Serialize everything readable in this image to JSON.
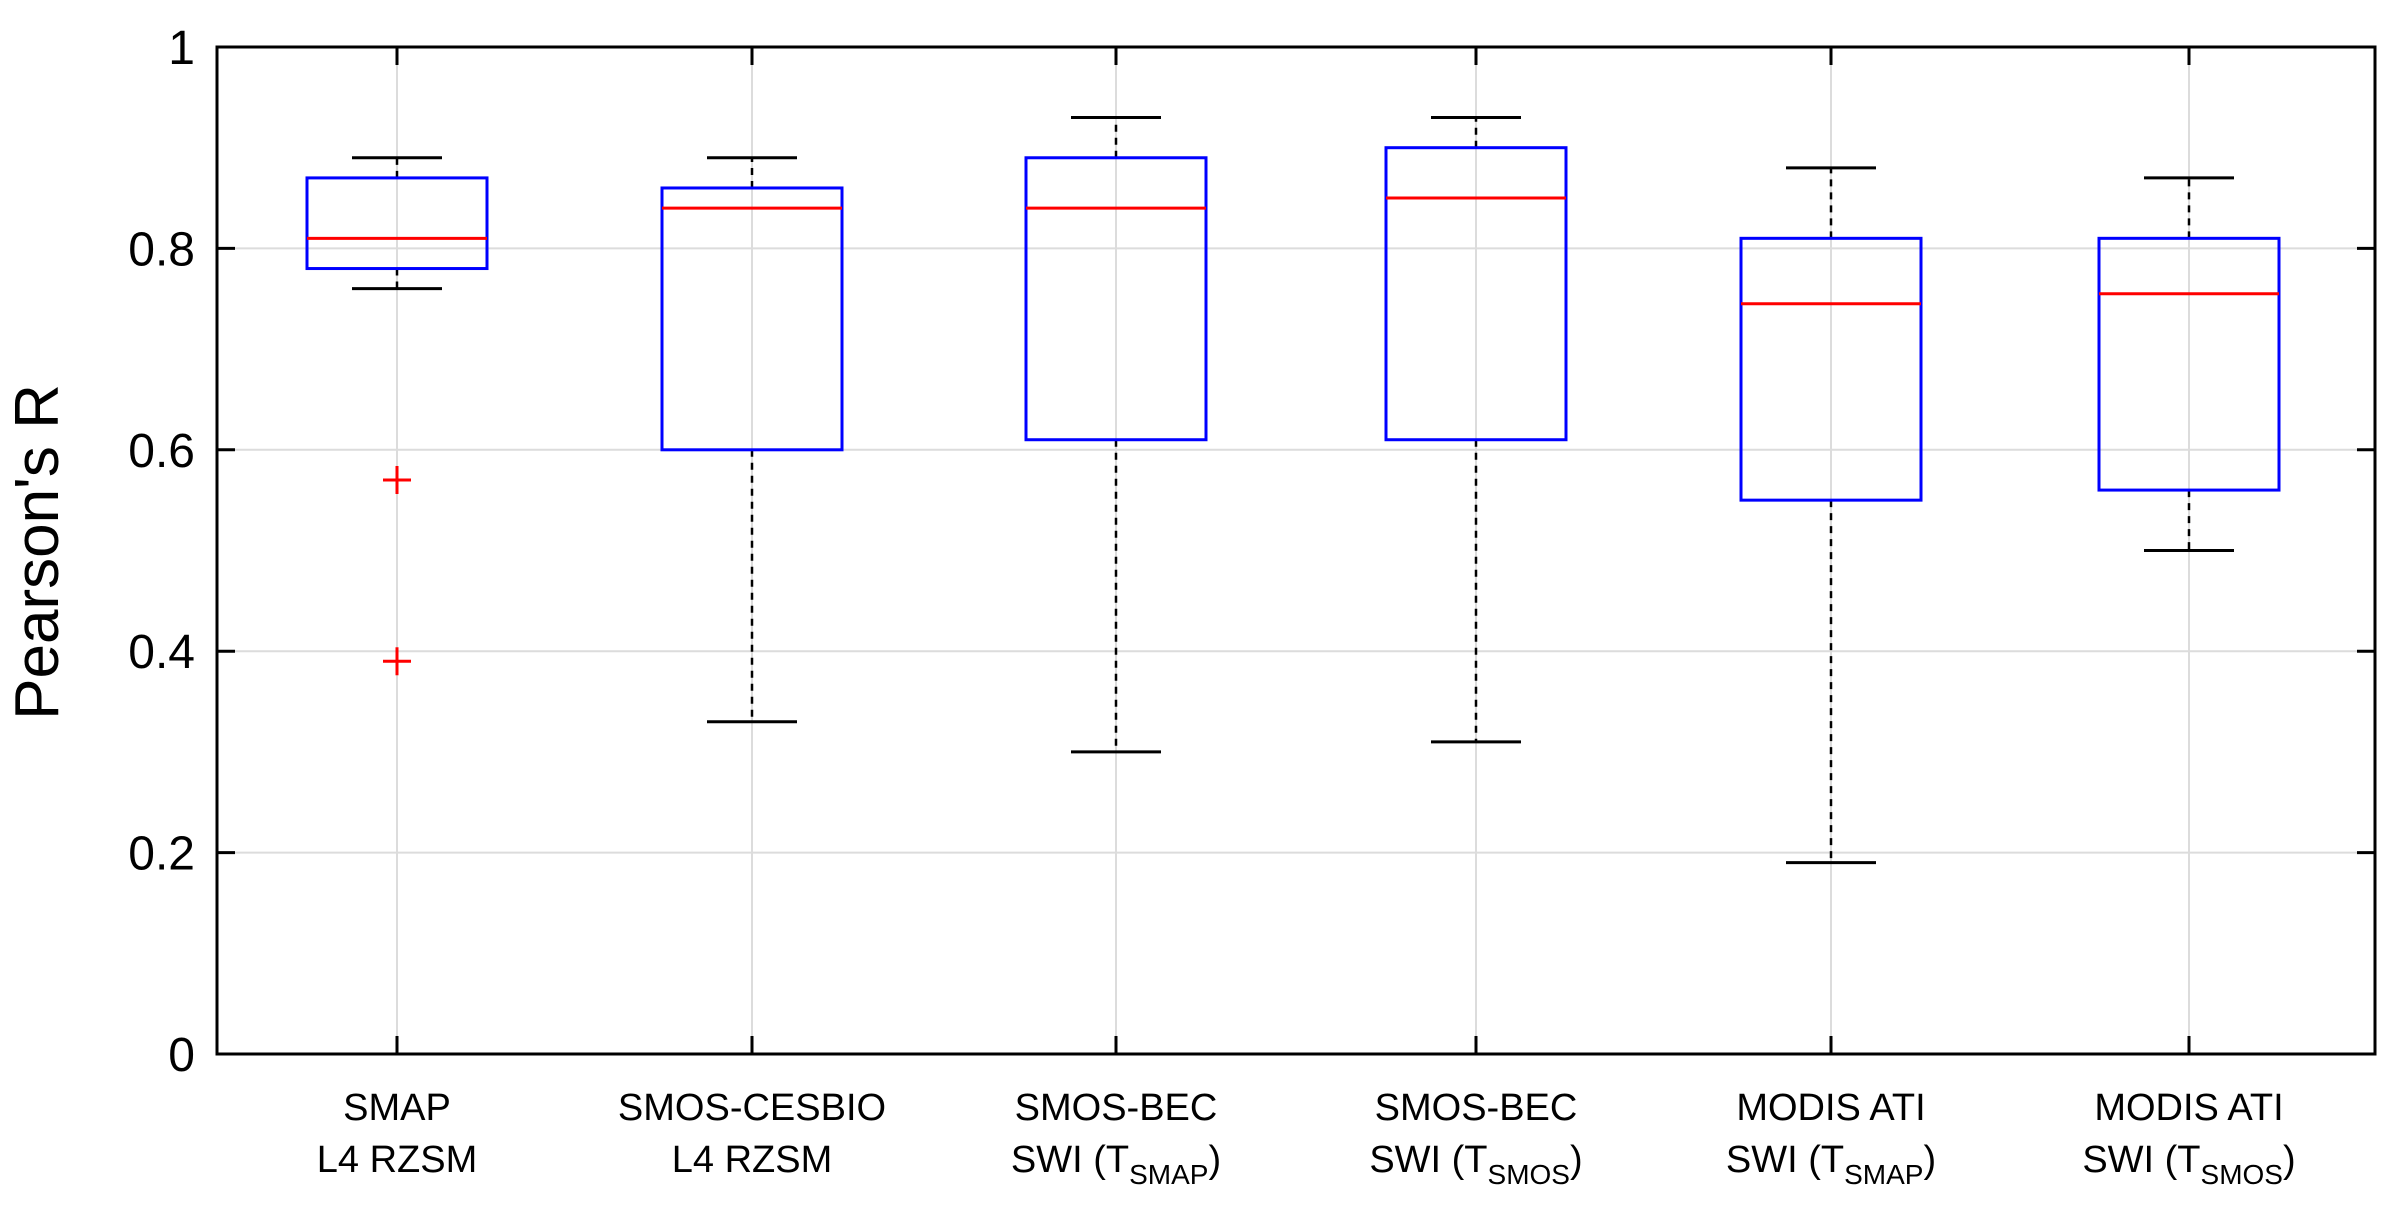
{
  "chart_data": {
    "type": "boxplot",
    "title": "",
    "xlabel": "",
    "ylabel": "Pearson's R",
    "ylim": [
      0,
      1
    ],
    "yticks": [
      {
        "value": 0,
        "label": "0"
      },
      {
        "value": 0.2,
        "label": "0.2"
      },
      {
        "value": 0.4,
        "label": "0.4"
      },
      {
        "value": 0.6,
        "label": "0.6"
      },
      {
        "value": 0.8,
        "label": "0.8"
      },
      {
        "value": 1,
        "label": "1"
      }
    ],
    "grid": true,
    "colors": {
      "box": "#0000ff",
      "median": "#ff0000",
      "whisker": "#000000",
      "outlier": "#ff0000",
      "grid": "#dcdcdc"
    },
    "series": [
      {
        "line1": "SMAP",
        "line2": "L4 RZSM",
        "line2_sub": "",
        "line2_end": "",
        "whisker_low": 0.76,
        "q1": 0.78,
        "median": 0.81,
        "q3": 0.87,
        "whisker_high": 0.89,
        "outliers": [
          0.57,
          0.39
        ]
      },
      {
        "line1": "SMOS-CESBIO",
        "line2": "L4 RZSM",
        "line2_sub": "",
        "line2_end": "",
        "whisker_low": 0.33,
        "q1": 0.6,
        "median": 0.84,
        "q3": 0.86,
        "whisker_high": 0.89,
        "outliers": []
      },
      {
        "line1": "SMOS-BEC",
        "line2": "SWI (T",
        "line2_sub": "SMAP",
        "line2_end": ")",
        "whisker_low": 0.3,
        "q1": 0.61,
        "median": 0.84,
        "q3": 0.89,
        "whisker_high": 0.93,
        "outliers": []
      },
      {
        "line1": "SMOS-BEC",
        "line2": "SWI (T",
        "line2_sub": "SMOS",
        "line2_end": ")",
        "whisker_low": 0.31,
        "q1": 0.61,
        "median": 0.85,
        "q3": 0.9,
        "whisker_high": 0.93,
        "outliers": []
      },
      {
        "line1": "MODIS ATI",
        "line2": "SWI (T",
        "line2_sub": "SMAP",
        "line2_end": ")",
        "whisker_low": 0.19,
        "q1": 0.55,
        "median": 0.745,
        "q3": 0.81,
        "whisker_high": 0.88,
        "outliers": []
      },
      {
        "line1": "MODIS ATI",
        "line2": "SWI (T",
        "line2_sub": "SMOS",
        "line2_end": ")",
        "whisker_low": 0.5,
        "q1": 0.56,
        "median": 0.755,
        "q3": 0.81,
        "whisker_high": 0.87,
        "outliers": []
      }
    ]
  }
}
